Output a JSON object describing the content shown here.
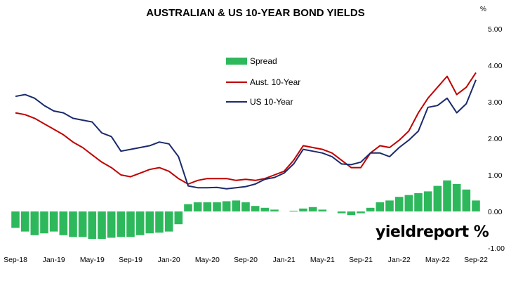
{
  "chart_data": {
    "type": "line",
    "title": "AUSTRALIAN & US 10-YEAR BOND YIELDS",
    "y_unit_label": "%",
    "ylim": [
      -1.0,
      5.0
    ],
    "y_ticks": [
      "-1.00",
      "0.00",
      "1.00",
      "2.00",
      "3.00",
      "4.00",
      "5.00"
    ],
    "x_ticks": [
      "Sep-18",
      "Jan-19",
      "May-19",
      "Sep-19",
      "Jan-20",
      "May-20",
      "Sep-20",
      "Jan-21",
      "May-21",
      "Sep-21",
      "Jan-22",
      "May-22",
      "Sep-22"
    ],
    "grid": false,
    "legend_placement": "top-center",
    "dates": [
      "2018-09",
      "2018-10",
      "2018-11",
      "2018-12",
      "2019-01",
      "2019-02",
      "2019-03",
      "2019-04",
      "2019-05",
      "2019-06",
      "2019-07",
      "2019-08",
      "2019-09",
      "2019-10",
      "2019-11",
      "2019-12",
      "2020-01",
      "2020-02",
      "2020-03",
      "2020-04",
      "2020-05",
      "2020-06",
      "2020-07",
      "2020-08",
      "2020-09",
      "2020-10",
      "2020-11",
      "2020-12",
      "2021-01",
      "2021-02",
      "2021-03",
      "2021-04",
      "2021-05",
      "2021-06",
      "2021-07",
      "2021-08",
      "2021-09",
      "2021-10",
      "2021-11",
      "2021-12",
      "2022-01",
      "2022-02",
      "2022-03",
      "2022-04",
      "2022-05",
      "2022-06",
      "2022-07",
      "2022-08",
      "2022-09"
    ],
    "series": [
      {
        "name": "Spread",
        "type": "bar",
        "color": "#2eb85c",
        "values": [
          -0.45,
          -0.55,
          -0.65,
          -0.6,
          -0.55,
          -0.65,
          -0.7,
          -0.7,
          -0.75,
          -0.75,
          -0.72,
          -0.7,
          -0.7,
          -0.65,
          -0.6,
          -0.58,
          -0.55,
          -0.35,
          0.2,
          0.25,
          0.25,
          0.25,
          0.28,
          0.3,
          0.25,
          0.15,
          0.1,
          0.05,
          0.0,
          0.02,
          0.08,
          0.12,
          0.05,
          0.0,
          -0.05,
          -0.1,
          -0.05,
          0.1,
          0.25,
          0.3,
          0.4,
          0.45,
          0.5,
          0.55,
          0.7,
          0.85,
          0.75,
          0.6,
          0.3
        ]
      },
      {
        "name": "Aust. 10-Year",
        "type": "line",
        "color": "#c00000",
        "values": [
          2.7,
          2.65,
          2.55,
          2.4,
          2.25,
          2.1,
          1.9,
          1.75,
          1.55,
          1.35,
          1.2,
          1.0,
          0.95,
          1.05,
          1.15,
          1.2,
          1.1,
          0.9,
          0.75,
          0.85,
          0.9,
          0.9,
          0.9,
          0.85,
          0.88,
          0.85,
          0.9,
          1.0,
          1.1,
          1.4,
          1.8,
          1.75,
          1.7,
          1.6,
          1.4,
          1.2,
          1.2,
          1.6,
          1.8,
          1.75,
          1.95,
          2.2,
          2.7,
          3.1,
          3.4,
          3.7,
          3.2,
          3.4,
          3.8
        ]
      },
      {
        "name": "US 10-Year",
        "type": "line",
        "color": "#1a2a6c",
        "values": [
          3.15,
          3.2,
          3.1,
          2.9,
          2.75,
          2.7,
          2.55,
          2.5,
          2.45,
          2.15,
          2.05,
          1.65,
          1.7,
          1.75,
          1.8,
          1.9,
          1.85,
          1.5,
          0.7,
          0.65,
          0.65,
          0.66,
          0.62,
          0.65,
          0.68,
          0.75,
          0.88,
          0.93,
          1.05,
          1.3,
          1.7,
          1.65,
          1.6,
          1.5,
          1.3,
          1.28,
          1.35,
          1.6,
          1.6,
          1.5,
          1.75,
          1.95,
          2.2,
          2.85,
          2.9,
          3.1,
          2.7,
          2.95,
          3.6
        ]
      }
    ],
    "watermark": "yieldreport %"
  }
}
